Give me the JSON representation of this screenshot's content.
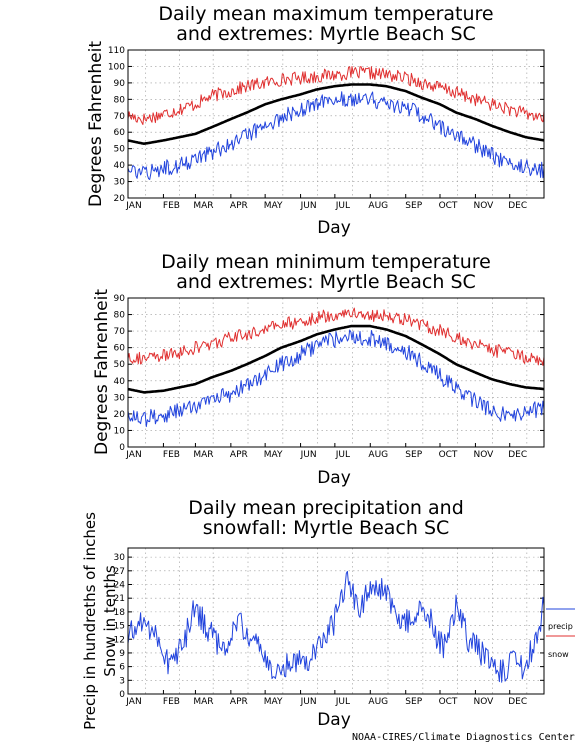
{
  "credit": "NOAA-CIRES/Climate Diagnostics Center",
  "colors": {
    "extreme_high": "#e03030",
    "extreme_low": "#2244dd",
    "mean": "#000000",
    "precip": "#2244dd",
    "snow": "#e03030",
    "grid": "#9a9a9a"
  },
  "chart_data": [
    {
      "type": "line",
      "title_line1": "Daily mean maximum temperature",
      "title_line2": "and extremes: Myrtle Beach SC",
      "xlabel": "Day",
      "ylabel": "Degrees Fahrenheit",
      "ylim": [
        20,
        110
      ],
      "yticks": [
        20,
        30,
        40,
        50,
        60,
        70,
        80,
        90,
        100,
        110
      ],
      "months": [
        "JAN",
        "FEB",
        "MAR",
        "APR",
        "MAY",
        "JUN",
        "JUL",
        "AUG",
        "SEP",
        "OCT",
        "NOV",
        "DEC"
      ],
      "grid": true,
      "x": [
        1,
        15,
        32,
        46,
        60,
        74,
        91,
        105,
        121,
        135,
        152,
        166,
        182,
        196,
        213,
        227,
        244,
        258,
        274,
        288,
        305,
        319,
        335,
        349,
        365
      ],
      "series": [
        {
          "role": "highest",
          "values": [
            70,
            68,
            71,
            74,
            77,
            82,
            85,
            88,
            90,
            92,
            93,
            94,
            95,
            96,
            96,
            95,
            93,
            90,
            87,
            84,
            80,
            77,
            74,
            71,
            69
          ]
        },
        {
          "role": "mean",
          "values": [
            55,
            53,
            55,
            57,
            59,
            63,
            68,
            72,
            77,
            80,
            83,
            86,
            88,
            89,
            89,
            88,
            85,
            81,
            77,
            72,
            68,
            64,
            60,
            57,
            55
          ]
        },
        {
          "role": "lowest",
          "values": [
            37,
            34,
            38,
            40,
            44,
            48,
            53,
            58,
            64,
            69,
            73,
            77,
            80,
            81,
            80,
            78,
            75,
            70,
            64,
            58,
            52,
            46,
            41,
            39,
            37
          ]
        }
      ]
    },
    {
      "type": "line",
      "title_line1": "Daily mean minimum temperature",
      "title_line2": "and extremes: Myrtle Beach SC",
      "xlabel": "Day",
      "ylabel": "Degrees Fahrenheit",
      "ylim": [
        0,
        90
      ],
      "yticks": [
        0,
        10,
        20,
        30,
        40,
        50,
        60,
        70,
        80,
        90
      ],
      "months": [
        "JAN",
        "FEB",
        "MAR",
        "APR",
        "MAY",
        "JUN",
        "JUL",
        "AUG",
        "SEP",
        "OCT",
        "NOV",
        "DEC"
      ],
      "grid": true,
      "x": [
        1,
        15,
        32,
        46,
        60,
        74,
        91,
        105,
        121,
        135,
        152,
        166,
        182,
        196,
        213,
        227,
        244,
        258,
        274,
        288,
        305,
        319,
        335,
        349,
        365
      ],
      "series": [
        {
          "role": "highest",
          "values": [
            55,
            53,
            55,
            57,
            60,
            62,
            66,
            68,
            71,
            74,
            76,
            78,
            80,
            81,
            80,
            79,
            77,
            74,
            70,
            66,
            62,
            59,
            56,
            54,
            53
          ]
        },
        {
          "role": "mean",
          "values": [
            35,
            33,
            34,
            36,
            38,
            42,
            46,
            50,
            55,
            60,
            64,
            68,
            71,
            73,
            73,
            71,
            67,
            62,
            56,
            50,
            45,
            41,
            38,
            36,
            35
          ]
        },
        {
          "role": "lowest",
          "values": [
            20,
            17,
            19,
            22,
            25,
            28,
            32,
            37,
            44,
            50,
            56,
            61,
            65,
            67,
            66,
            63,
            58,
            51,
            43,
            35,
            28,
            22,
            18,
            21,
            24
          ]
        }
      ]
    },
    {
      "type": "line",
      "title_line1": "Daily mean precipitation and",
      "title_line2": "snowfall: Myrtle Beach SC",
      "xlabel": "Day",
      "ylabel_line1": "Precip in hundreths of inches",
      "ylabel_line2": "Snow in tenths",
      "ylim": [
        0,
        32
      ],
      "yticks": [
        0,
        3,
        6,
        9,
        12,
        15,
        18,
        21,
        24,
        27,
        30
      ],
      "months": [
        "JAN",
        "FEB",
        "MAR",
        "APR",
        "MAY",
        "JUN",
        "JUL",
        "AUG",
        "SEP",
        "OCT",
        "NOV",
        "DEC"
      ],
      "grid": true,
      "legend": [
        "precip",
        "snow"
      ],
      "legend_position": "right",
      "x": [
        1,
        12,
        24,
        36,
        48,
        60,
        72,
        84,
        96,
        108,
        120,
        132,
        144,
        156,
        168,
        180,
        192,
        204,
        216,
        228,
        240,
        252,
        264,
        276,
        288,
        300,
        312,
        324,
        336,
        348,
        360,
        365
      ],
      "series": [
        {
          "name": "precip",
          "values": [
            12,
            16,
            14,
            7,
            10,
            19,
            14,
            9,
            16,
            13,
            8,
            4,
            8,
            7,
            11,
            15,
            25,
            19,
            24,
            22,
            14,
            18,
            17,
            10,
            19,
            11,
            9,
            4,
            7,
            5,
            14,
            20
          ]
        },
        {
          "name": "snow",
          "values": [
            0,
            0,
            0,
            0,
            0,
            0,
            0,
            0,
            0,
            0,
            0,
            0,
            0,
            0,
            0,
            0,
            0,
            0,
            0,
            0,
            0,
            0,
            0,
            0,
            0,
            0,
            0,
            0,
            0,
            0,
            0,
            0
          ]
        }
      ]
    }
  ]
}
